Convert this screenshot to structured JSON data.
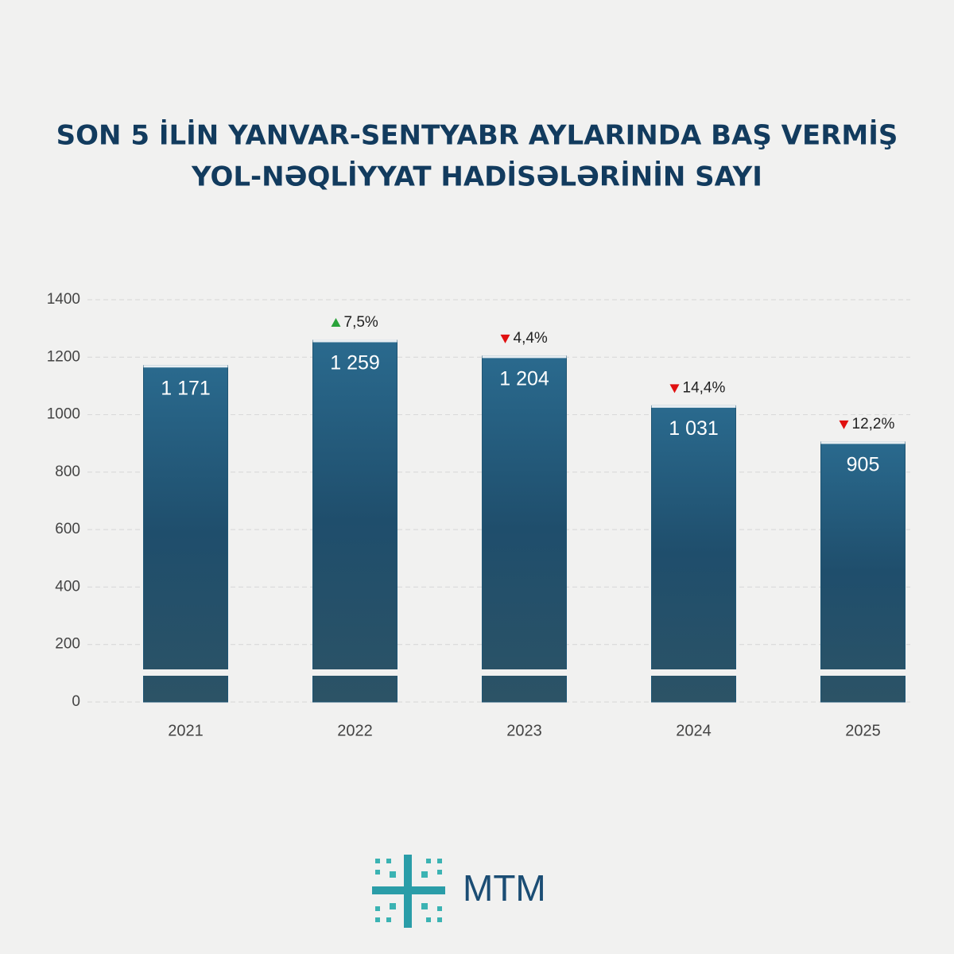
{
  "chart_data": {
    "type": "bar",
    "title": [
      "SON 5 İLİN YANVAR-SENTYABR AYLARINDA BAŞ VERMİŞ",
      "YOL-NƏQLİYYAT HADİSƏLƏRİNİN SAYI"
    ],
    "categories": [
      "2021",
      "2022",
      "2023",
      "2024",
      "2025"
    ],
    "values": [
      1171,
      1259,
      1204,
      1031,
      905
    ],
    "value_labels": [
      "1 171",
      "1 259",
      "1 204",
      "1 031",
      "905"
    ],
    "changes": [
      null,
      "7,5%",
      "4,4%",
      "14,4%",
      "12,2%"
    ],
    "change_directions": [
      null,
      "up",
      "down",
      "down",
      "down"
    ],
    "color": "#1f5574",
    "ylim": [
      0,
      1400
    ],
    "yticks": [
      0,
      200,
      400,
      600,
      800,
      1000,
      1200,
      1400
    ],
    "grid": true
  },
  "logo": {
    "text": "MTM"
  }
}
